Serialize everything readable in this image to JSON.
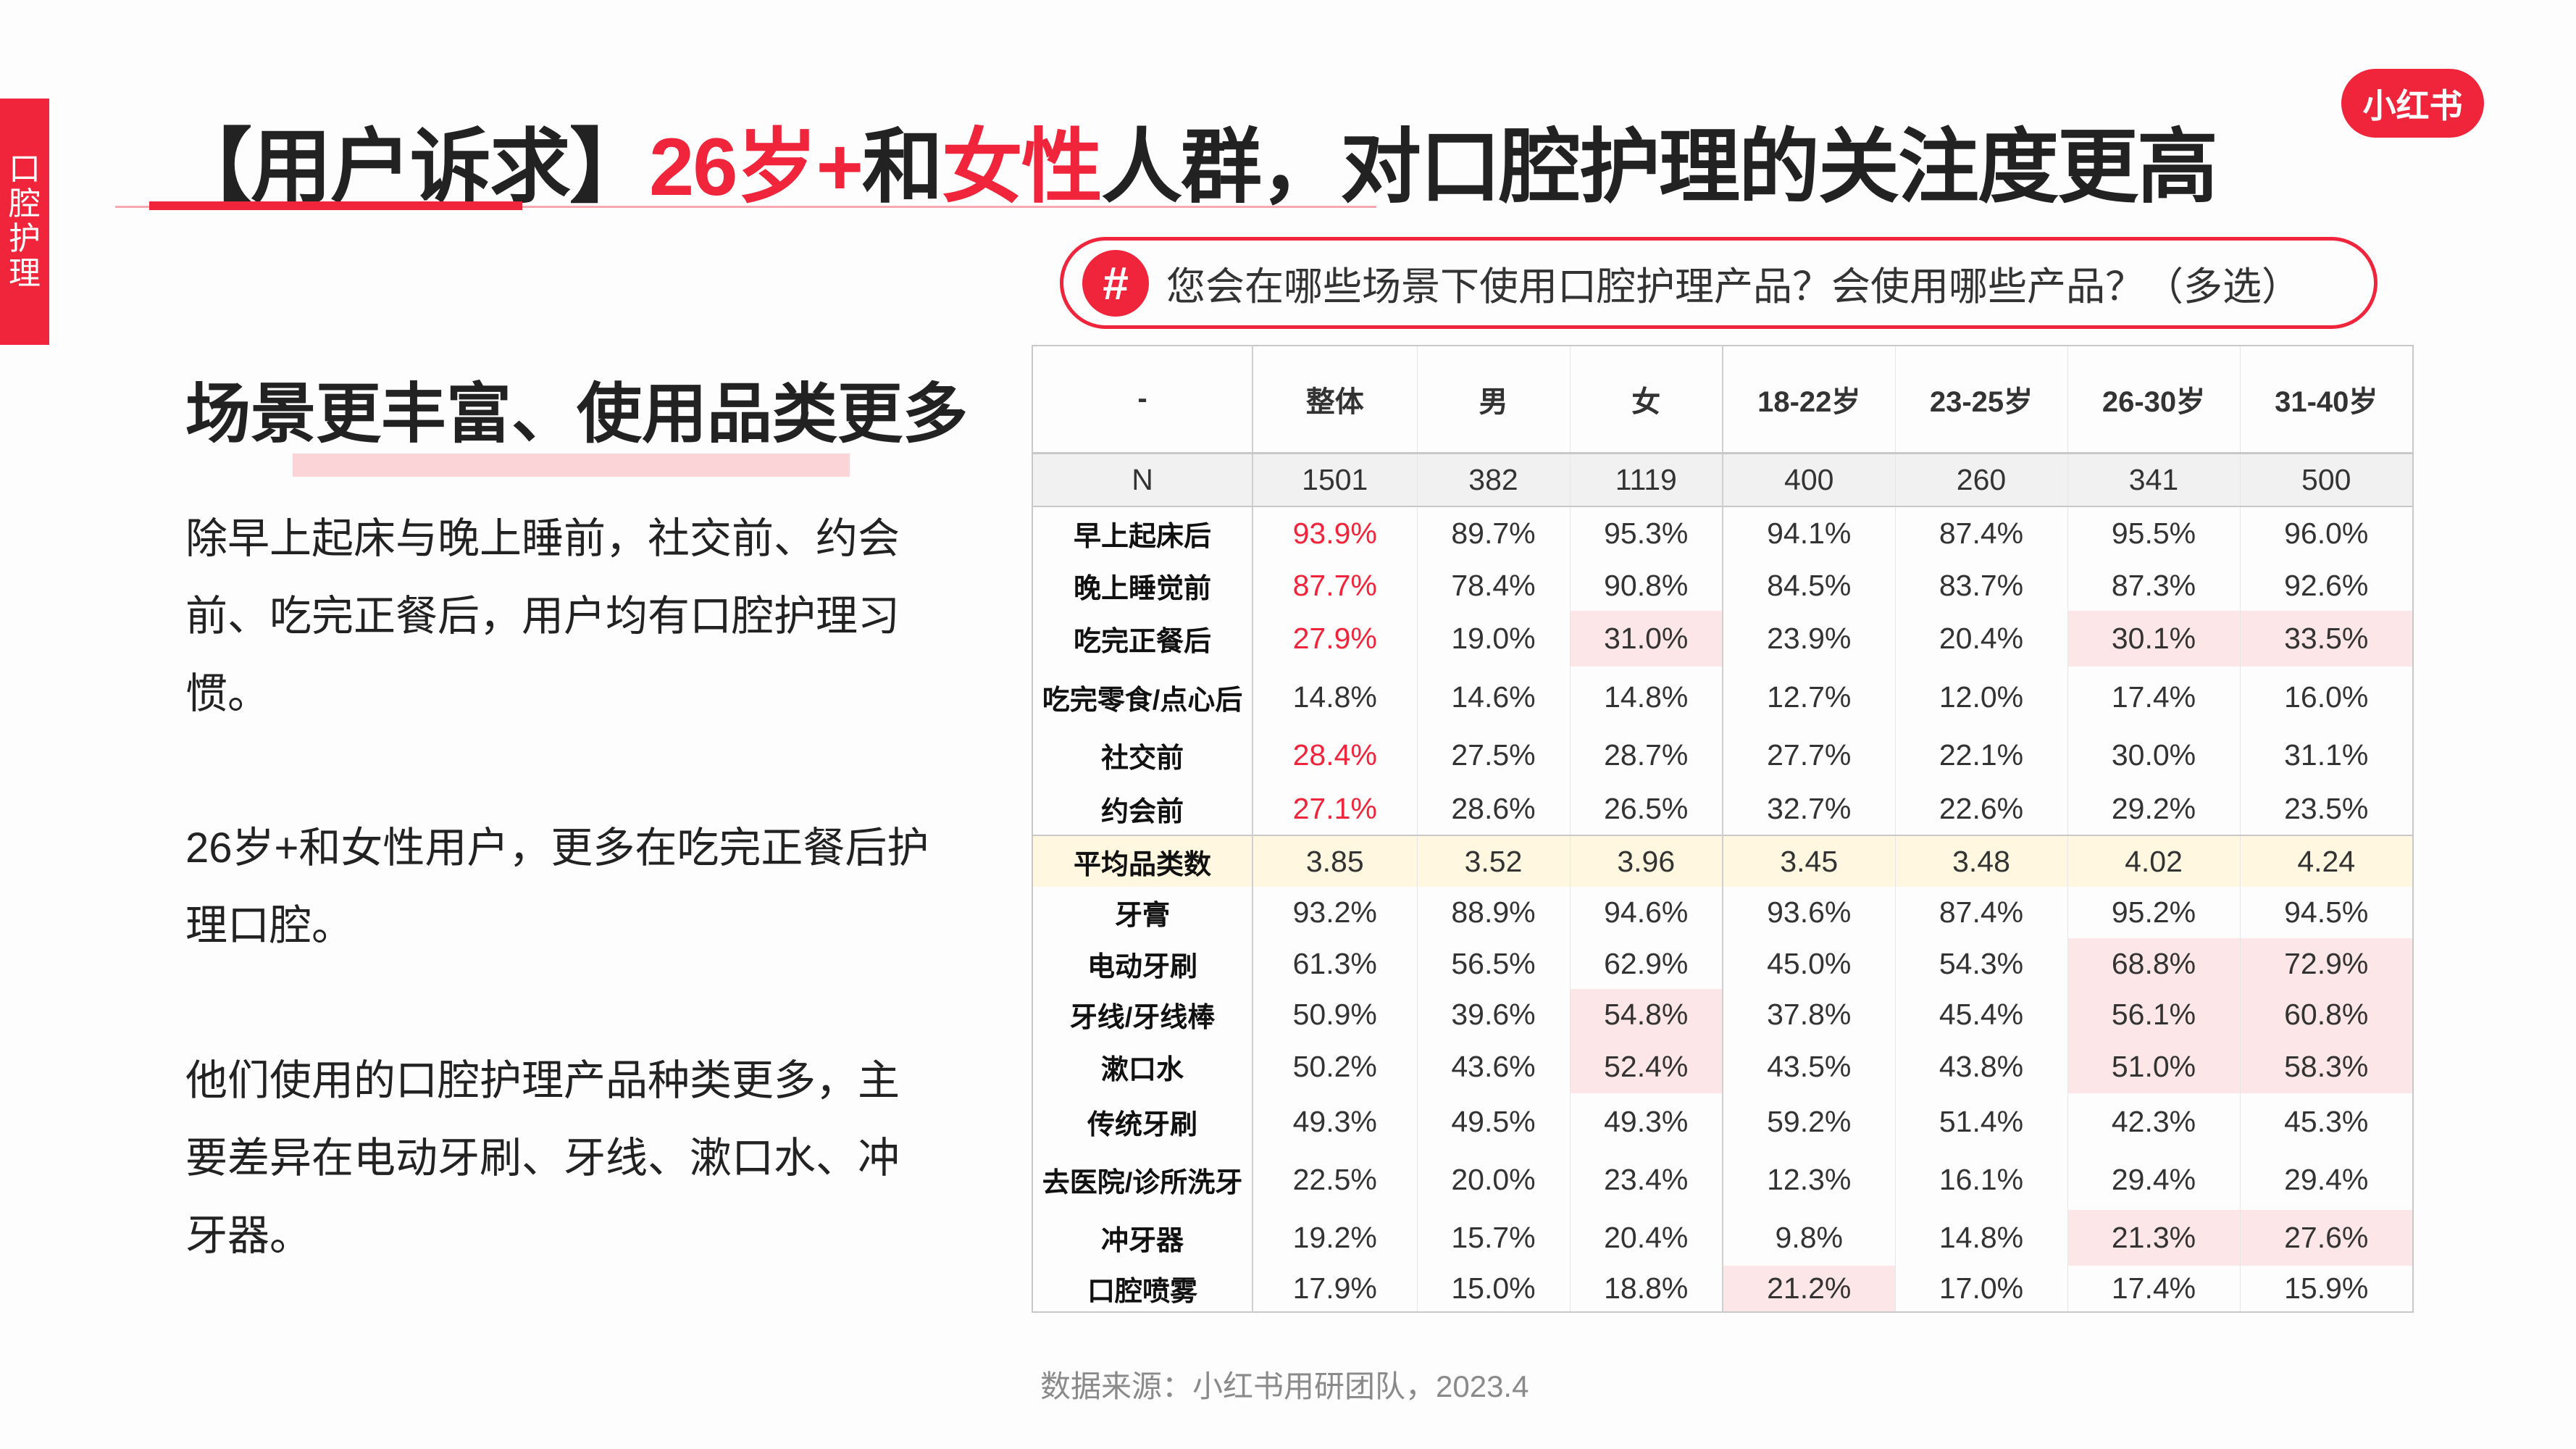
{
  "side_tab": "口腔护理",
  "logo": "小红书",
  "title": {
    "bracket": "【用户诉求】",
    "red1": "26岁+",
    "mid": "和",
    "red2": "女性",
    "rest": "人群，对口腔护理的关注度更高"
  },
  "question": {
    "icon": "#",
    "text": "您会在哪些场景下使用口腔护理产品？会使用哪些产品？（多选）"
  },
  "subtitle": "场景更丰富、使用品类更多",
  "paragraphs": [
    "除早上起床与晚上睡前，社交前、约会前、吃完正餐后，用户均有口腔护理习惯。",
    "26岁+和女性用户，更多在吃完正餐后护理口腔。",
    "他们使用的口腔护理产品种类更多，主要差异在电动牙刷、牙线、漱口水、冲牙器。"
  ],
  "colors": {
    "accent": "#f0243a",
    "highlight": "#fde6e7",
    "avg_row": "#fff7e0"
  },
  "table": {
    "headers": [
      "-",
      "整体",
      "男",
      "女",
      "18-22岁",
      "23-25岁",
      "26-30岁",
      "31-40岁"
    ],
    "n_row": {
      "label": "N",
      "values": [
        "1501",
        "382",
        "1119",
        "400",
        "260",
        "341",
        "500"
      ]
    },
    "rows": [
      {
        "label": "早上起床后",
        "values": [
          "93.9%",
          "89.7%",
          "95.3%",
          "94.1%",
          "87.4%",
          "95.5%",
          "96.0%"
        ],
        "red": true,
        "pink": []
      },
      {
        "label": "晚上睡觉前",
        "values": [
          "87.7%",
          "78.4%",
          "90.8%",
          "84.5%",
          "83.7%",
          "87.3%",
          "92.6%"
        ],
        "red": true,
        "pink": []
      },
      {
        "label": "吃完正餐后",
        "values": [
          "27.9%",
          "19.0%",
          "31.0%",
          "23.9%",
          "20.4%",
          "30.1%",
          "33.5%"
        ],
        "red": true,
        "pink": [
          2,
          5,
          6
        ]
      },
      {
        "label": "吃完零食/点心后",
        "values": [
          "14.8%",
          "14.6%",
          "14.8%",
          "12.7%",
          "12.0%",
          "17.4%",
          "16.0%"
        ],
        "red": false,
        "pink": []
      },
      {
        "label": "社交前",
        "values": [
          "28.4%",
          "27.5%",
          "28.7%",
          "27.7%",
          "22.1%",
          "30.0%",
          "31.1%"
        ],
        "red": true,
        "pink": []
      },
      {
        "label": "约会前",
        "values": [
          "27.1%",
          "28.6%",
          "26.5%",
          "32.7%",
          "22.6%",
          "29.2%",
          "23.5%"
        ],
        "red": true,
        "pink": []
      },
      {
        "label": "平均品类数",
        "values": [
          "3.85",
          "3.52",
          "3.96",
          "3.45",
          "3.48",
          "4.02",
          "4.24"
        ],
        "red": false,
        "pink": [],
        "avg": true
      },
      {
        "label": "牙膏",
        "values": [
          "93.2%",
          "88.9%",
          "94.6%",
          "93.6%",
          "87.4%",
          "95.2%",
          "94.5%"
        ],
        "red": false,
        "pink": []
      },
      {
        "label": "电动牙刷",
        "values": [
          "61.3%",
          "56.5%",
          "62.9%",
          "45.0%",
          "54.3%",
          "68.8%",
          "72.9%"
        ],
        "red": false,
        "pink": [
          5,
          6
        ]
      },
      {
        "label": "牙线/牙线棒",
        "values": [
          "50.9%",
          "39.6%",
          "54.8%",
          "37.8%",
          "45.4%",
          "56.1%",
          "60.8%"
        ],
        "red": false,
        "pink": [
          2,
          5,
          6
        ]
      },
      {
        "label": "漱口水",
        "values": [
          "50.2%",
          "43.6%",
          "52.4%",
          "43.5%",
          "43.8%",
          "51.0%",
          "58.3%"
        ],
        "red": false,
        "pink": [
          2,
          5,
          6
        ]
      },
      {
        "label": "传统牙刷",
        "values": [
          "49.3%",
          "49.5%",
          "49.3%",
          "59.2%",
          "51.4%",
          "42.3%",
          "45.3%"
        ],
        "red": false,
        "pink": []
      },
      {
        "label": "去医院/诊所洗牙",
        "values": [
          "22.5%",
          "20.0%",
          "23.4%",
          "12.3%",
          "16.1%",
          "29.4%",
          "29.4%"
        ],
        "red": false,
        "pink": []
      },
      {
        "label": "冲牙器",
        "values": [
          "19.2%",
          "15.7%",
          "20.4%",
          "9.8%",
          "14.8%",
          "21.3%",
          "27.6%"
        ],
        "red": false,
        "pink": [
          5,
          6
        ]
      },
      {
        "label": "口腔喷雾",
        "values": [
          "17.9%",
          "15.0%",
          "18.8%",
          "21.2%",
          "17.0%",
          "17.4%",
          "15.9%"
        ],
        "red": false,
        "pink": [
          3
        ]
      }
    ]
  },
  "source": "数据来源：小红书用研团队，2023.4"
}
